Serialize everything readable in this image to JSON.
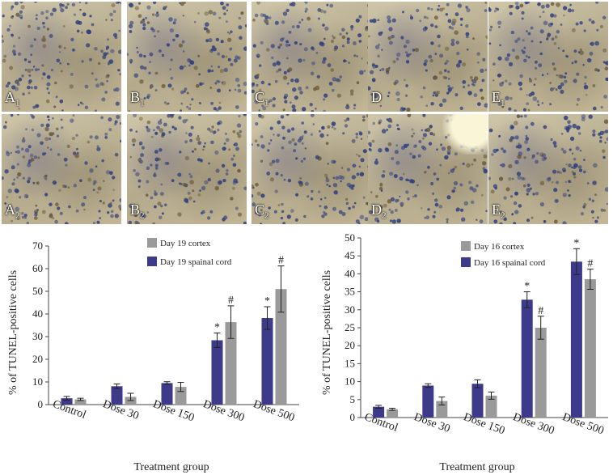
{
  "micrographs": [
    {
      "letter": "A",
      "sub": "1"
    },
    {
      "letter": "B",
      "sub": "1"
    },
    {
      "letter": "C",
      "sub": "1"
    },
    {
      "letter": "D",
      "sub": ""
    },
    {
      "letter": "E",
      "sub": "1"
    },
    {
      "letter": "A",
      "sub": "2"
    },
    {
      "letter": "B",
      "sub": "2"
    },
    {
      "letter": "C",
      "sub": "2"
    },
    {
      "letter": "D",
      "sub": "2"
    },
    {
      "letter": "E",
      "sub": "2"
    }
  ],
  "colors": {
    "spinal_cord": "#3d3a8a",
    "cortex": "#9a9a9a",
    "tissue_nucleus": "#2f3f7e"
  },
  "chart_data": [
    {
      "type": "bar",
      "categories": [
        "Control",
        "Dose 30",
        "Dose 150",
        "Dose 300",
        "Dose 500"
      ],
      "ylabel": "% of TUNEL-positive cells",
      "xlabel": "Treatment group",
      "ylim": [
        0,
        70
      ],
      "yticks": [
        0,
        10,
        20,
        30,
        40,
        50,
        60,
        70
      ],
      "legend": [
        "Day 19 cortex",
        "Day 19 spainal cord"
      ],
      "series": [
        {
          "name": "Day 19 spainal cord",
          "values": [
            2.8,
            8.1,
            9.5,
            28.4,
            38.2
          ],
          "errors": [
            0.8,
            1.0,
            0.6,
            3.2,
            5.0
          ],
          "marks": [
            "",
            "",
            "",
            "*",
            "*"
          ]
        },
        {
          "name": "Day 19 cortex",
          "values": [
            2.3,
            3.4,
            7.8,
            36.4,
            51.0
          ],
          "errors": [
            0.5,
            1.6,
            2.0,
            7.2,
            10.2
          ],
          "marks": [
            "",
            "",
            "",
            "#",
            "#"
          ]
        }
      ]
    },
    {
      "type": "bar",
      "categories": [
        "Control",
        "Dose 30",
        "Dose 150",
        "Dose 300",
        "Dose 500"
      ],
      "ylabel": "% of TUNEL-positive cells",
      "xlabel": "Treatment group",
      "ylim": [
        0,
        50
      ],
      "yticks": [
        0,
        5,
        10,
        15,
        20,
        25,
        30,
        35,
        40,
        45,
        50
      ],
      "legend": [
        "Day 16 cortex",
        "Day 16 spainal cord"
      ],
      "series": [
        {
          "name": "Day 16 spainal cord",
          "values": [
            3.0,
            8.9,
            9.4,
            32.8,
            43.4
          ],
          "errors": [
            0.4,
            0.5,
            1.1,
            2.2,
            3.6
          ],
          "marks": [
            "",
            "",
            "",
            "*",
            "*"
          ]
        },
        {
          "name": "Day 16 cortex",
          "values": [
            2.3,
            4.6,
            6.1,
            25.0,
            38.5
          ],
          "errors": [
            0.3,
            1.1,
            1.0,
            3.2,
            2.8
          ],
          "marks": [
            "",
            "",
            "",
            "#",
            "#"
          ]
        }
      ]
    }
  ]
}
